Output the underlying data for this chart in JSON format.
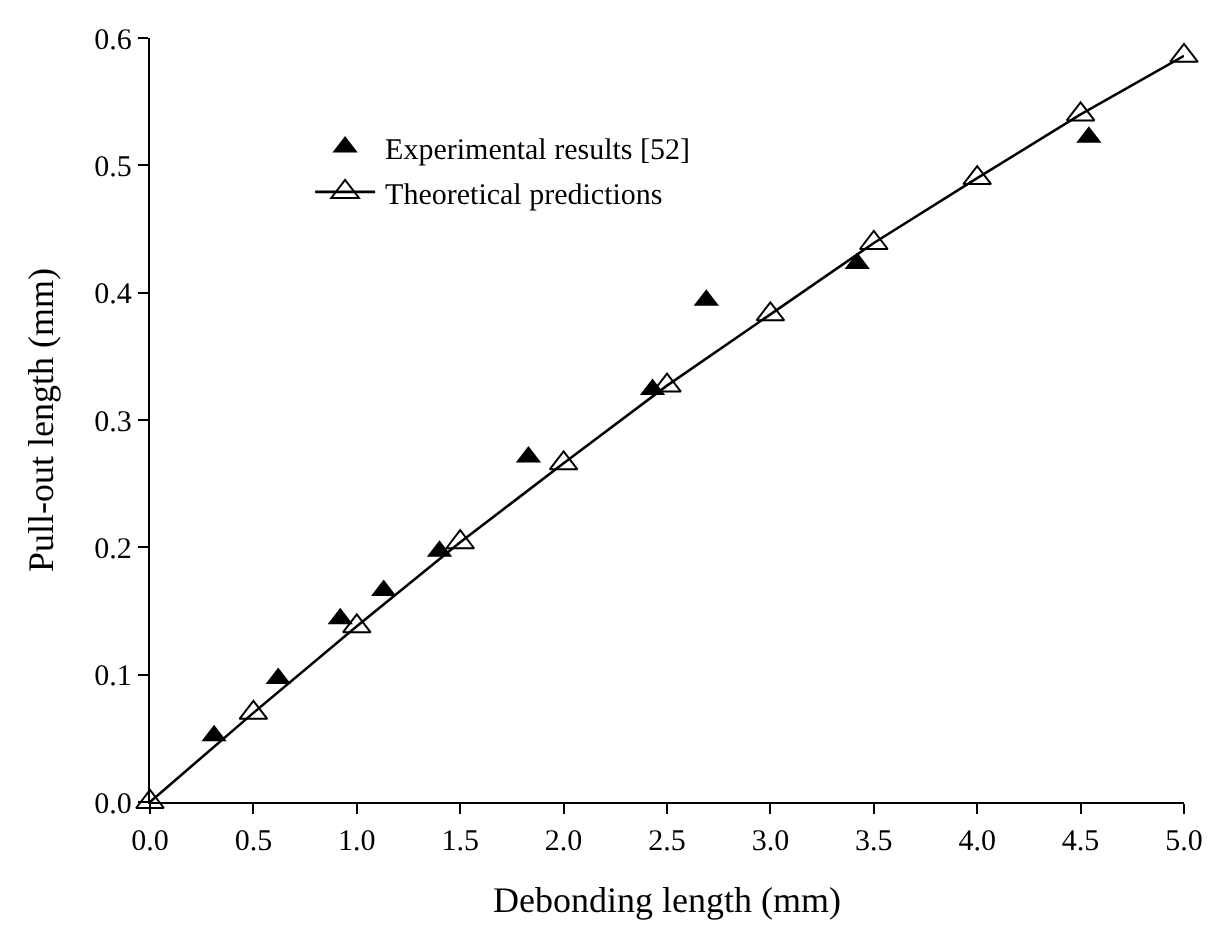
{
  "chart_data": {
    "type": "scatter",
    "xlabel": "Debonding length (mm)",
    "ylabel": "Pull-out length (mm)",
    "xlim": [
      0,
      5
    ],
    "xticks": [
      {
        "value": 0,
        "label": "0.0"
      },
      {
        "value": 0.5,
        "label": "0.5"
      },
      {
        "value": 1,
        "label": "1.0"
      },
      {
        "value": 1.5,
        "label": "1.5"
      },
      {
        "value": 2,
        "label": "2.0"
      },
      {
        "value": 2.5,
        "label": "2.5"
      },
      {
        "value": 3,
        "label": "3.0"
      },
      {
        "value": 3.5,
        "label": "3.5"
      },
      {
        "value": 4,
        "label": "4.0"
      },
      {
        "value": 4.5,
        "label": "4.5"
      },
      {
        "value": 5,
        "label": "5.0"
      }
    ],
    "ylim": [
      0,
      0.6
    ],
    "yticks": [
      {
        "value": 0,
        "label": "0.0"
      },
      0.1,
      0.2,
      0.3,
      0.4,
      0.5,
      0.6
    ],
    "grid": false,
    "legend": "top left",
    "marker": "triangle",
    "series": [
      {
        "name": "Experimental results [52]",
        "color": "#000000",
        "x": [
          0.31,
          0.62,
          0.92,
          1.13,
          1.4,
          1.83,
          2.43,
          2.69,
          3.42,
          4.54
        ],
        "values": [
          0.052,
          0.097,
          0.144,
          0.166,
          0.197,
          0.271,
          0.324,
          0.394,
          0.423,
          0.522
        ]
      },
      {
        "name": "Theoretical predictions",
        "type": "line",
        "color": "#000000",
        "line_style": "solid",
        "x": [
          0,
          0.5,
          1,
          1.5,
          2,
          2.5,
          3,
          3.5,
          4,
          4.5,
          5
        ],
        "values": [
          0,
          0.07,
          0.138,
          0.204,
          0.266,
          0.327,
          0.383,
          0.439,
          0.49,
          0.54,
          0.586
        ]
      }
    ]
  }
}
